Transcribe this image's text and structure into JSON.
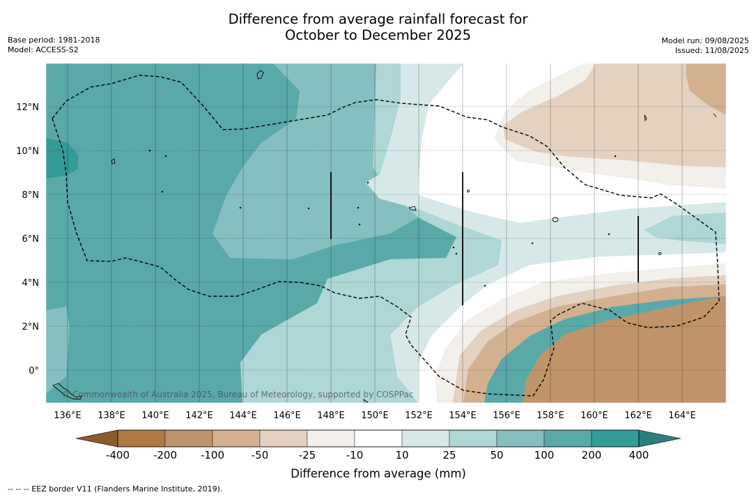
{
  "title": {
    "line1": "Difference from average rainfall forecast for",
    "line2": "October to December 2025"
  },
  "meta_left": {
    "base_period": "Base period: 1981-2018",
    "model": "Model: ACCESS-S2"
  },
  "meta_right": {
    "model_run": "Model run: 09/08/2025",
    "issued": "Issued: 11/08/2025"
  },
  "map": {
    "lat_ticks": [
      "12°N",
      "10°N",
      "8°N",
      "6°N",
      "4°N",
      "2°N",
      "0°"
    ],
    "lon_ticks": [
      "136°E",
      "138°E",
      "140°E",
      "142°E",
      "144°E",
      "146°E",
      "148°E",
      "150°E",
      "152°E",
      "154°E",
      "156°E",
      "158°E",
      "160°E",
      "162°E",
      "164°E"
    ],
    "credit": "© Commonwealth of Australia 2025, Bureau of Meteorology, supported by COSPPac"
  },
  "colorbar": {
    "labels": [
      "-400",
      "-200",
      "-100",
      "-50",
      "-25",
      "-10",
      "10",
      "25",
      "50",
      "100",
      "200",
      "400"
    ],
    "colors": [
      "#8e5a2c",
      "#b07a45",
      "#c0946a",
      "#d3b18f",
      "#e4d1bf",
      "#f3efea",
      "#ffffff",
      "#d6e9e8",
      "#aed7d6",
      "#85bfbf",
      "#5aa9a9",
      "#339b98",
      "#2a7f7c"
    ],
    "title": "Difference from average (mm)"
  },
  "footnote": "--  --  -- EEZ border V11 (Flanders Marine Institute, 2019)."
}
